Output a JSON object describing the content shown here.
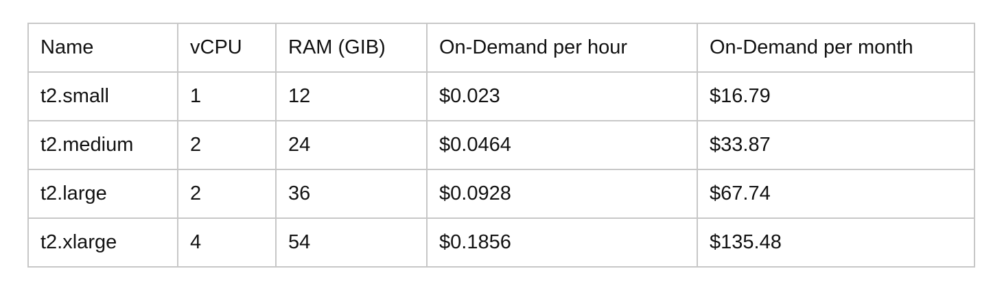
{
  "table": {
    "headers": [
      "Name",
      "vCPU",
      "RAM (GIB)",
      "On-Demand per hour",
      "On-Demand per month"
    ],
    "rows": [
      [
        "t2.small",
        "1",
        "12",
        "$0.023",
        "$16.79"
      ],
      [
        "t2.medium",
        "2",
        "24",
        "$0.0464",
        "$33.87"
      ],
      [
        "t2.large",
        "2",
        "36",
        "$0.0928",
        "$67.74"
      ],
      [
        "t2.xlarge",
        "4",
        "54",
        "$0.1856",
        "$135.48"
      ]
    ]
  }
}
